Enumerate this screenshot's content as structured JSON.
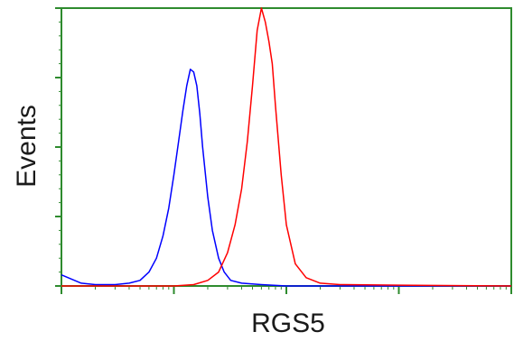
{
  "chart_data": {
    "type": "line",
    "xlabel": "RGS5",
    "ylabel": "Events",
    "x_scale": "log",
    "xlim": [
      1,
      10000
    ],
    "ylim": [
      0,
      100
    ],
    "grid": false,
    "legend": "none",
    "frame_color": "#2e8b2e",
    "series": [
      {
        "color": "#0000ff",
        "x": [
          1,
          1.5,
          2,
          3,
          4,
          5,
          6,
          7,
          8,
          9,
          10,
          11,
          12,
          13,
          14,
          15,
          16,
          17,
          18,
          20,
          22,
          25,
          28,
          32,
          40,
          60,
          100,
          300,
          1000,
          10000
        ],
        "values": [
          4,
          1,
          0.5,
          0.5,
          1,
          2,
          5,
          10,
          18,
          28,
          40,
          52,
          63,
          72,
          78,
          77,
          72,
          62,
          50,
          32,
          20,
          10,
          5,
          2,
          1,
          0.5,
          0,
          0,
          0,
          0
        ]
      },
      {
        "color": "#ff0000",
        "x": [
          1,
          5,
          10,
          15,
          20,
          25,
          30,
          35,
          40,
          45,
          50,
          55,
          60,
          65,
          70,
          75,
          80,
          90,
          100,
          120,
          150,
          200,
          300,
          1000,
          10000
        ],
        "values": [
          0,
          0,
          0,
          0.5,
          2,
          5,
          12,
          22,
          35,
          52,
          72,
          92,
          100,
          95,
          88,
          80,
          65,
          40,
          22,
          8,
          3,
          1,
          0.5,
          0.3,
          0
        ]
      }
    ]
  }
}
